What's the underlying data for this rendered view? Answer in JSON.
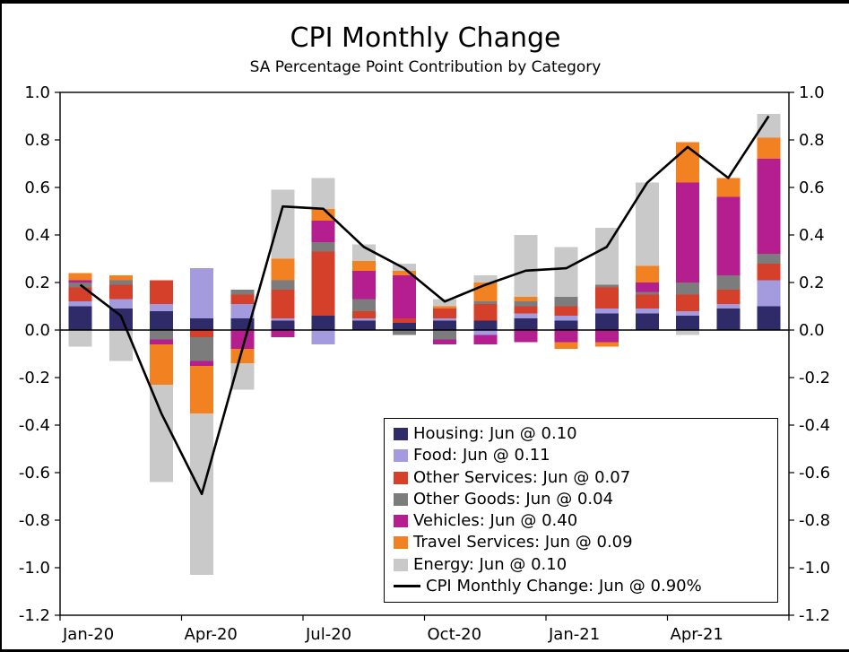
{
  "title": "CPI Monthly Change",
  "subtitle": "SA Percentage Point Contribution by Category",
  "chart_data": {
    "type": "bar",
    "stacked": true,
    "grid": false,
    "categories": [
      "Jan-20",
      "Feb-20",
      "Mar-20",
      "Apr-20",
      "May-20",
      "Jun-20",
      "Jul-20",
      "Aug-20",
      "Sep-20",
      "Oct-20",
      "Nov-20",
      "Dec-20",
      "Jan-21",
      "Feb-21",
      "Mar-21",
      "Apr-21",
      "May-21",
      "Jun-21"
    ],
    "series": [
      {
        "name": "Housing",
        "color": "#2e2b68",
        "values": [
          0.1,
          0.09,
          0.08,
          0.05,
          0.05,
          0.04,
          0.06,
          0.04,
          0.03,
          0.04,
          0.04,
          0.05,
          0.04,
          0.07,
          0.07,
          0.06,
          0.09,
          0.1
        ]
      },
      {
        "name": "Food",
        "color": "#a49ade",
        "values": [
          0.02,
          0.04,
          0.03,
          0.21,
          0.06,
          0.01,
          -0.06,
          0.01,
          0.0,
          0.01,
          -0.02,
          0.02,
          0.02,
          0.02,
          0.02,
          0.02,
          0.02,
          0.11
        ]
      },
      {
        "name": "Other Services",
        "color": "#d5402b",
        "values": [
          0.06,
          0.06,
          0.1,
          -0.03,
          0.04,
          0.12,
          0.27,
          0.03,
          0.02,
          0.04,
          0.07,
          0.03,
          0.04,
          0.09,
          0.06,
          0.07,
          0.06,
          0.07
        ]
      },
      {
        "name": "Other Goods",
        "color": "#7c7c7c",
        "values": [
          0.02,
          0.02,
          -0.04,
          -0.1,
          0.02,
          0.04,
          0.04,
          0.05,
          -0.02,
          -0.04,
          0.01,
          0.02,
          0.04,
          0.01,
          0.01,
          0.05,
          0.06,
          0.04
        ]
      },
      {
        "name": "Vehicles",
        "color": "#b51e8e",
        "values": [
          0.01,
          0.0,
          -0.02,
          -0.02,
          -0.08,
          -0.03,
          0.09,
          0.12,
          0.18,
          -0.02,
          -0.04,
          -0.05,
          -0.05,
          -0.05,
          0.04,
          0.42,
          0.33,
          0.4
        ]
      },
      {
        "name": "Travel Services",
        "color": "#f18121",
        "values": [
          0.03,
          0.02,
          -0.17,
          -0.2,
          -0.06,
          0.09,
          0.05,
          0.04,
          0.02,
          0.01,
          0.08,
          0.02,
          -0.03,
          -0.02,
          0.07,
          0.17,
          0.08,
          0.09
        ]
      },
      {
        "name": "Energy",
        "color": "#c9c9c9",
        "values": [
          -0.07,
          -0.13,
          -0.41,
          -0.68,
          -0.11,
          0.29,
          0.13,
          0.07,
          0.03,
          0.03,
          0.03,
          0.26,
          0.21,
          0.24,
          0.35,
          -0.02,
          0.0,
          0.1
        ]
      }
    ],
    "line_series": {
      "name": "CPI Monthly Change",
      "color": "#000000",
      "values": [
        0.19,
        0.06,
        -0.35,
        -0.69,
        -0.08,
        0.52,
        0.51,
        0.35,
        0.26,
        0.12,
        0.19,
        0.25,
        0.26,
        0.35,
        0.62,
        0.77,
        0.64,
        0.9
      ]
    },
    "ylim": [
      -1.2,
      1.0
    ],
    "ytick_step": 0.2,
    "y_tick_labels": [
      "1.0",
      "0.8",
      "0.6",
      "0.4",
      "0.2",
      "0.0",
      "-0.2",
      "-0.4",
      "-0.6",
      "-0.8",
      "-1.0",
      "-1.2"
    ],
    "x_tick_labels": [
      {
        "index": 0,
        "label": "Jan-20"
      },
      {
        "index": 3,
        "label": "Apr-20"
      },
      {
        "index": 6,
        "label": "Jul-20"
      },
      {
        "index": 9,
        "label": "Oct-20"
      },
      {
        "index": 12,
        "label": "Jan-21"
      },
      {
        "index": 15,
        "label": "Apr-21"
      }
    ],
    "legend": {
      "position": "bottom-right",
      "entries": [
        {
          "swatch": "#2e2b68",
          "label": "Housing: Jun @ 0.10"
        },
        {
          "swatch": "#a49ade",
          "label": "Food: Jun @ 0.11"
        },
        {
          "swatch": "#d5402b",
          "label": "Other Services: Jun @ 0.07"
        },
        {
          "swatch": "#7c7c7c",
          "label": "Other Goods: Jun @ 0.04"
        },
        {
          "swatch": "#b51e8e",
          "label": "Vehicles: Jun @ 0.40"
        },
        {
          "swatch": "#f18121",
          "label": "Travel Services: Jun @ 0.09"
        },
        {
          "swatch": "#c9c9c9",
          "label": "Energy: Jun @ 0.10"
        },
        {
          "swatch": "line",
          "label": "CPI Monthly Change: Jun @ 0.90%"
        }
      ]
    }
  }
}
